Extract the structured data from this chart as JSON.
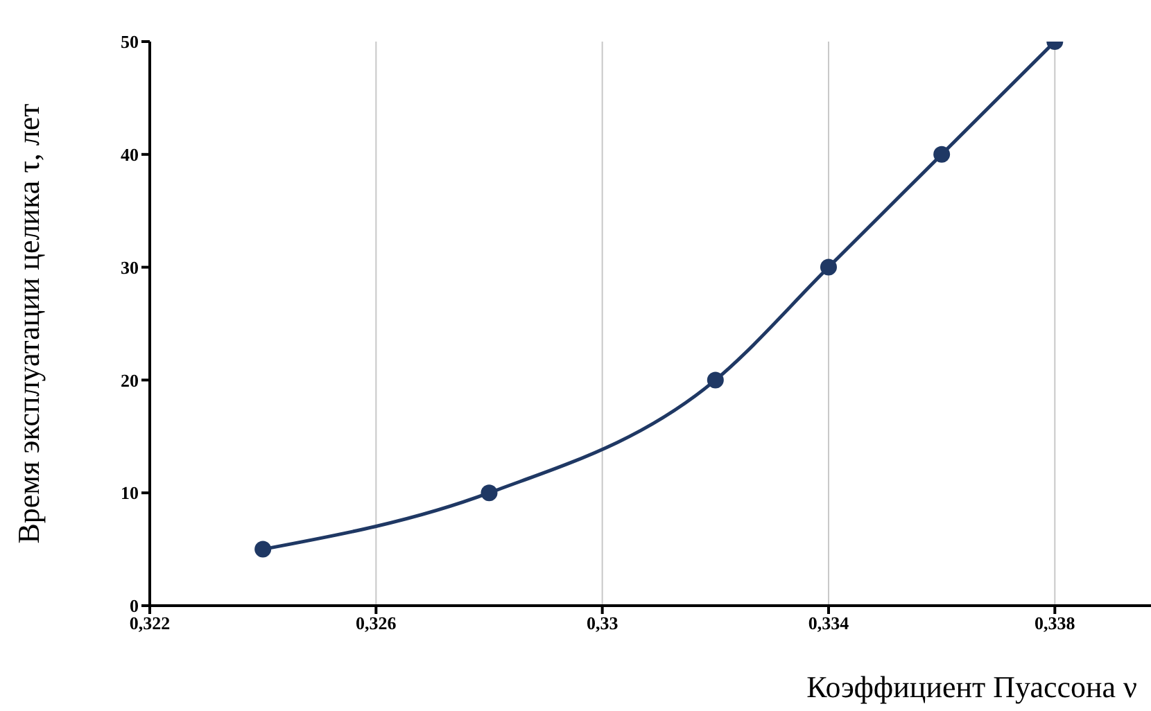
{
  "chart_data": {
    "type": "line",
    "xlabel": "Коэффициент Пуассона ν",
    "ylabel": "Время эксплуатации целика τ, лет",
    "x": [
      0.324,
      0.328,
      0.332,
      0.334,
      0.336,
      0.338
    ],
    "series": [
      {
        "color": "#1f3864",
        "values": [
          5,
          10,
          20,
          30,
          40,
          50
        ]
      }
    ],
    "xlim": [
      0.322,
      0.3397
    ],
    "xticks": [
      {
        "value": 0.322,
        "label": "0,322"
      },
      {
        "value": 0.326,
        "label": "0,326"
      },
      {
        "value": 0.33,
        "label": "0,33"
      },
      {
        "value": 0.334,
        "label": "0,334"
      },
      {
        "value": 0.338,
        "label": "0,338"
      }
    ],
    "ylim": [
      0,
      50
    ],
    "yticks": [
      0,
      10,
      20,
      30,
      40,
      50
    ],
    "grid": "x",
    "marker": "circle",
    "line_style": "solid",
    "legend": false
  }
}
